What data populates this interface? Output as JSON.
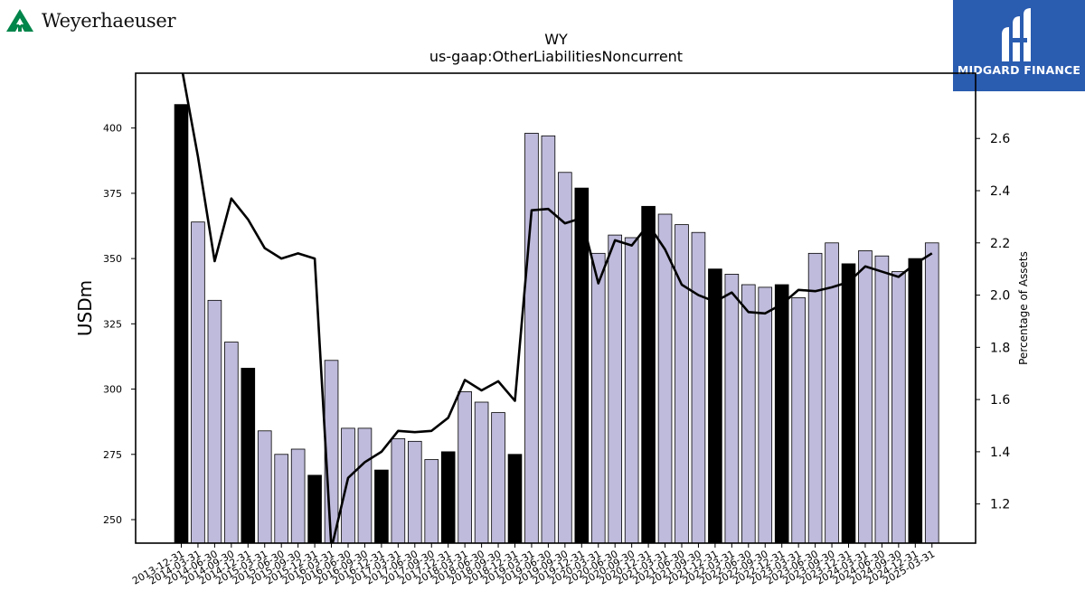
{
  "company_logo": {
    "name": "Weyerhaeuser",
    "color": "#00854a"
  },
  "brand_logo": {
    "name": "MIDGARD FINANCE",
    "background": "#2a5cb0"
  },
  "chart_data": {
    "type": "bar",
    "title": "WY",
    "subtitle": "us-gaap:OtherLiabilitiesNoncurrent",
    "ylabel": "USDm",
    "y2label": "Percentage of Assets",
    "ylim": [
      241,
      421
    ],
    "y2lim": [
      1.05,
      2.85
    ],
    "yticks": [
      250,
      275,
      300,
      325,
      350,
      375,
      400
    ],
    "y2ticks": [
      "1.2",
      "1.4",
      "1.6",
      "1.8",
      "2.0",
      "2.2",
      "2.4",
      "2.6"
    ],
    "grid": false,
    "colors": {
      "bar_default": "#bfbbdc",
      "bar_q4": "#000000",
      "line": "#000000"
    },
    "categories": [
      "2013-12-31",
      "2014-03-31",
      "2014-06-30",
      "2014-09-30",
      "2014-12-31",
      "2015-03-31",
      "2015-06-30",
      "2015-09-30",
      "2015-12-31",
      "2016-03-31",
      "2016-06-30",
      "2016-09-30",
      "2016-12-31",
      "2017-03-31",
      "2017-06-30",
      "2017-09-30",
      "2017-12-31",
      "2018-03-31",
      "2018-06-30",
      "2018-09-30",
      "2018-12-31",
      "2019-03-31",
      "2019-06-30",
      "2019-09-30",
      "2019-12-31",
      "2020-03-31",
      "2020-06-30",
      "2020-09-30",
      "2020-12-31",
      "2021-03-31",
      "2021-06-30",
      "2021-09-30",
      "2021-12-31",
      "2022-03-31",
      "2022-06-30",
      "2022-09-30",
      "2022-12-31",
      "2023-03-31",
      "2023-06-30",
      "2023-09-30",
      "2023-12-31",
      "2024-03-31",
      "2024-06-30",
      "2024-09-30",
      "2024-12-31",
      "2025-03-31"
    ],
    "series": [
      {
        "values": [
          409,
          364,
          334,
          318,
          308,
          284,
          275,
          277,
          267,
          311,
          285,
          285,
          269,
          281,
          280,
          273,
          276,
          299,
          295,
          291,
          275,
          398,
          397,
          383,
          377,
          352,
          359,
          358,
          370,
          367,
          363,
          360,
          346,
          344,
          340,
          339,
          340,
          335,
          352,
          356,
          348,
          353,
          351,
          345,
          350,
          356
        ]
      },
      {
        "axis": "right",
        "values": [
          2.88,
          2.53,
          2.13,
          2.37,
          2.29,
          2.18,
          2.14,
          2.16,
          2.14,
          1.03,
          1.3,
          1.36,
          1.4,
          1.48,
          1.475,
          1.48,
          1.53,
          1.675,
          1.635,
          1.67,
          1.595,
          2.325,
          2.33,
          2.275,
          2.295,
          2.045,
          2.21,
          2.19,
          2.27,
          2.175,
          2.04,
          2.0,
          1.975,
          2.01,
          1.935,
          1.93,
          1.965,
          2.02,
          2.015,
          2.03,
          2.05,
          2.11,
          2.09,
          2.07,
          2.12,
          2.16
        ]
      }
    ]
  }
}
